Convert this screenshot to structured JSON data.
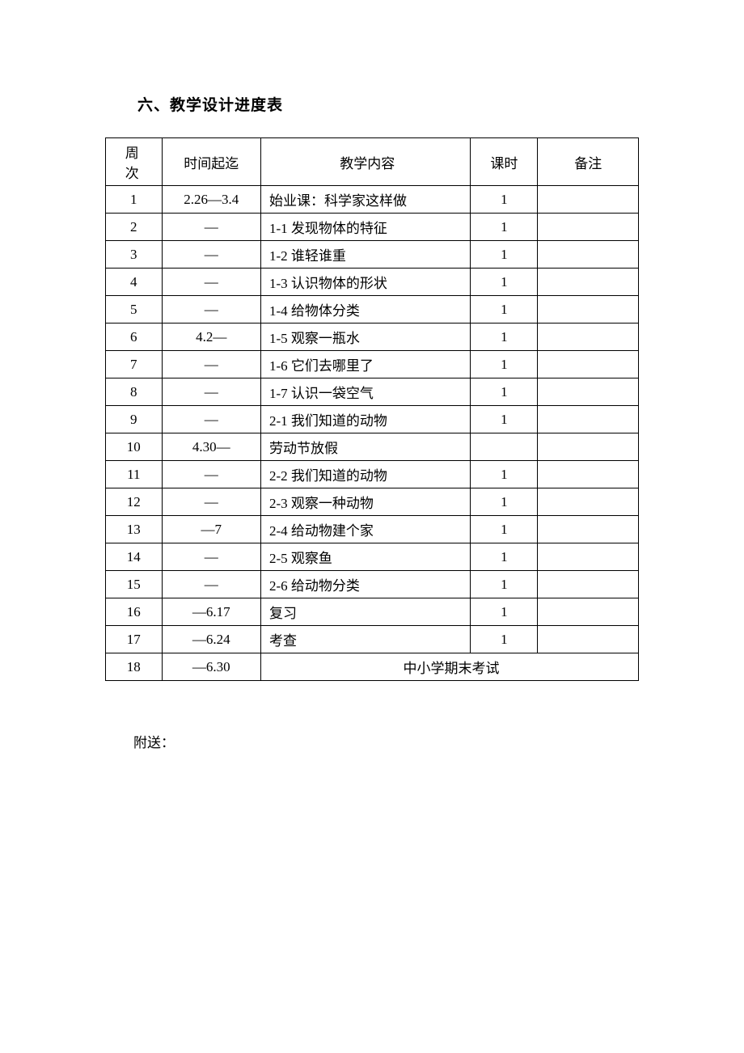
{
  "title": "六、教学设计进度表",
  "table": {
    "headers": {
      "week": "周次",
      "time": "时间起迄",
      "content": "教学内容",
      "hours": "课时",
      "notes": "备注"
    },
    "rows": [
      {
        "week": "1",
        "time": "2.26—3.4",
        "content": "始业课：科学家这样做",
        "hours": "1",
        "notes": ""
      },
      {
        "week": "2",
        "time": "—",
        "content": "1-1 发现物体的特征",
        "hours": "1",
        "notes": ""
      },
      {
        "week": "3",
        "time": "—",
        "content": "1-2 谁轻谁重",
        "hours": "1",
        "notes": ""
      },
      {
        "week": "4",
        "time": "—",
        "content": "1-3 认识物体的形状",
        "hours": "1",
        "notes": ""
      },
      {
        "week": "5",
        "time": "—",
        "content": "1-4 给物体分类",
        "hours": "1",
        "notes": ""
      },
      {
        "week": "6",
        "time": "4.2—",
        "content": "1-5 观察一瓶水",
        "hours": "1",
        "notes": ""
      },
      {
        "week": "7",
        "time": "—",
        "content": "1-6 它们去哪里了",
        "hours": "1",
        "notes": ""
      },
      {
        "week": "8",
        "time": "—",
        "content": "1-7 认识一袋空气",
        "hours": "1",
        "notes": ""
      },
      {
        "week": "9",
        "time": "—",
        "content": "2-1 我们知道的动物",
        "hours": "1",
        "notes": ""
      },
      {
        "week": "10",
        "time": "4.30—",
        "content": "劳动节放假",
        "hours": "",
        "notes": ""
      },
      {
        "week": "11",
        "time": "—",
        "content": "2-2 我们知道的动物",
        "hours": "1",
        "notes": ""
      },
      {
        "week": "12",
        "time": "—",
        "content": "2-3 观察一种动物",
        "hours": "1",
        "notes": ""
      },
      {
        "week": "13",
        "time": "—7",
        "content": "2-4 给动物建个家",
        "hours": "1",
        "notes": ""
      },
      {
        "week": "14",
        "time": "—",
        "content": "2-5 观察鱼",
        "hours": "1",
        "notes": ""
      },
      {
        "week": "15",
        "time": "—",
        "content": "2-6 给动物分类",
        "hours": "1",
        "notes": ""
      },
      {
        "week": "16",
        "time": "—6.17",
        "content": "复习",
        "hours": "1",
        "notes": ""
      },
      {
        "week": "17",
        "time": "—6.24",
        "content": "考查",
        "hours": "1",
        "notes": ""
      }
    ],
    "lastRow": {
      "week": "18",
      "time": "—6.30",
      "merged_content": "中小学期末考试"
    }
  },
  "footer": "附送："
}
